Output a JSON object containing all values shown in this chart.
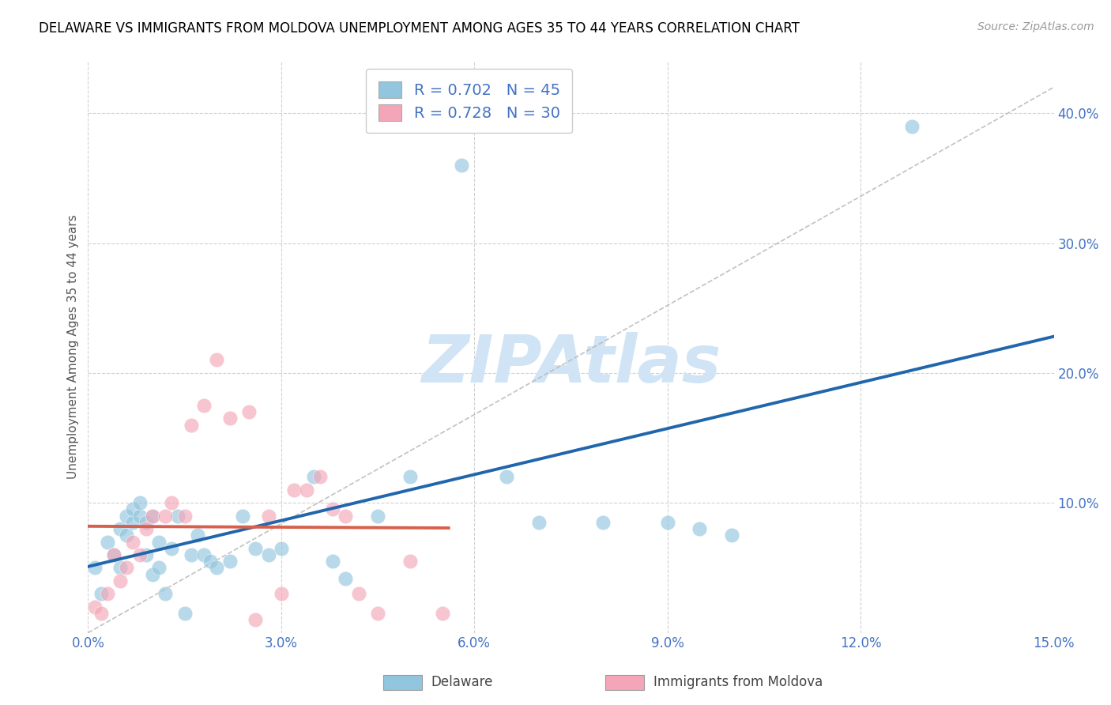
{
  "title": "DELAWARE VS IMMIGRANTS FROM MOLDOVA UNEMPLOYMENT AMONG AGES 35 TO 44 YEARS CORRELATION CHART",
  "source": "Source: ZipAtlas.com",
  "ylabel": "Unemployment Among Ages 35 to 44 years",
  "xlim": [
    0.0,
    0.15
  ],
  "ylim": [
    0.0,
    0.44
  ],
  "xticks": [
    0.0,
    0.03,
    0.06,
    0.09,
    0.12,
    0.15
  ],
  "yticks": [
    0.0,
    0.1,
    0.2,
    0.3,
    0.4
  ],
  "xtick_labels": [
    "0.0%",
    "3.0%",
    "6.0%",
    "9.0%",
    "12.0%",
    "15.0%"
  ],
  "ytick_labels": [
    "",
    "10.0%",
    "20.0%",
    "30.0%",
    "40.0%"
  ],
  "delaware_color": "#92c5de",
  "moldova_color": "#f4a6b8",
  "delaware_line_color": "#2166ac",
  "moldova_line_color": "#d6604d",
  "diag_line_color": "#bbbbbb",
  "R_delaware": 0.702,
  "N_delaware": 45,
  "R_moldova": 0.728,
  "N_moldova": 30,
  "legend_label_delaware": "Delaware",
  "legend_label_moldova": "Immigrants from Moldova",
  "watermark": "ZIPAtlas",
  "delaware_x": [
    0.001,
    0.002,
    0.003,
    0.004,
    0.005,
    0.005,
    0.006,
    0.006,
    0.007,
    0.007,
    0.008,
    0.008,
    0.009,
    0.009,
    0.01,
    0.01,
    0.011,
    0.011,
    0.012,
    0.013,
    0.014,
    0.015,
    0.016,
    0.017,
    0.018,
    0.019,
    0.02,
    0.022,
    0.024,
    0.026,
    0.028,
    0.03,
    0.035,
    0.038,
    0.04,
    0.045,
    0.05,
    0.058,
    0.065,
    0.07,
    0.08,
    0.09,
    0.095,
    0.1,
    0.128
  ],
  "delaware_y": [
    0.05,
    0.03,
    0.07,
    0.06,
    0.05,
    0.08,
    0.075,
    0.09,
    0.085,
    0.095,
    0.09,
    0.1,
    0.06,
    0.085,
    0.09,
    0.045,
    0.05,
    0.07,
    0.03,
    0.065,
    0.09,
    0.015,
    0.06,
    0.075,
    0.06,
    0.055,
    0.05,
    0.055,
    0.09,
    0.065,
    0.06,
    0.065,
    0.12,
    0.055,
    0.042,
    0.09,
    0.12,
    0.36,
    0.12,
    0.085,
    0.085,
    0.085,
    0.08,
    0.075,
    0.39
  ],
  "moldova_x": [
    0.001,
    0.002,
    0.003,
    0.004,
    0.005,
    0.006,
    0.007,
    0.008,
    0.009,
    0.01,
    0.012,
    0.013,
    0.015,
    0.016,
    0.018,
    0.02,
    0.022,
    0.025,
    0.026,
    0.028,
    0.03,
    0.032,
    0.034,
    0.036,
    0.038,
    0.04,
    0.042,
    0.045,
    0.05,
    0.055
  ],
  "moldova_y": [
    0.02,
    0.015,
    0.03,
    0.06,
    0.04,
    0.05,
    0.07,
    0.06,
    0.08,
    0.09,
    0.09,
    0.1,
    0.09,
    0.16,
    0.175,
    0.21,
    0.165,
    0.17,
    0.01,
    0.09,
    0.03,
    0.11,
    0.11,
    0.12,
    0.095,
    0.09,
    0.03,
    0.015,
    0.055,
    0.015
  ],
  "background_color": "#ffffff",
  "grid_color": "#cccccc",
  "tick_color": "#4472c4",
  "title_fontsize": 12,
  "source_fontsize": 10,
  "ylabel_fontsize": 11,
  "legend_fontsize": 14,
  "watermark_fontsize": 60,
  "watermark_color": "#d0e4f5",
  "scatter_size": 180,
  "scatter_alpha": 0.65
}
